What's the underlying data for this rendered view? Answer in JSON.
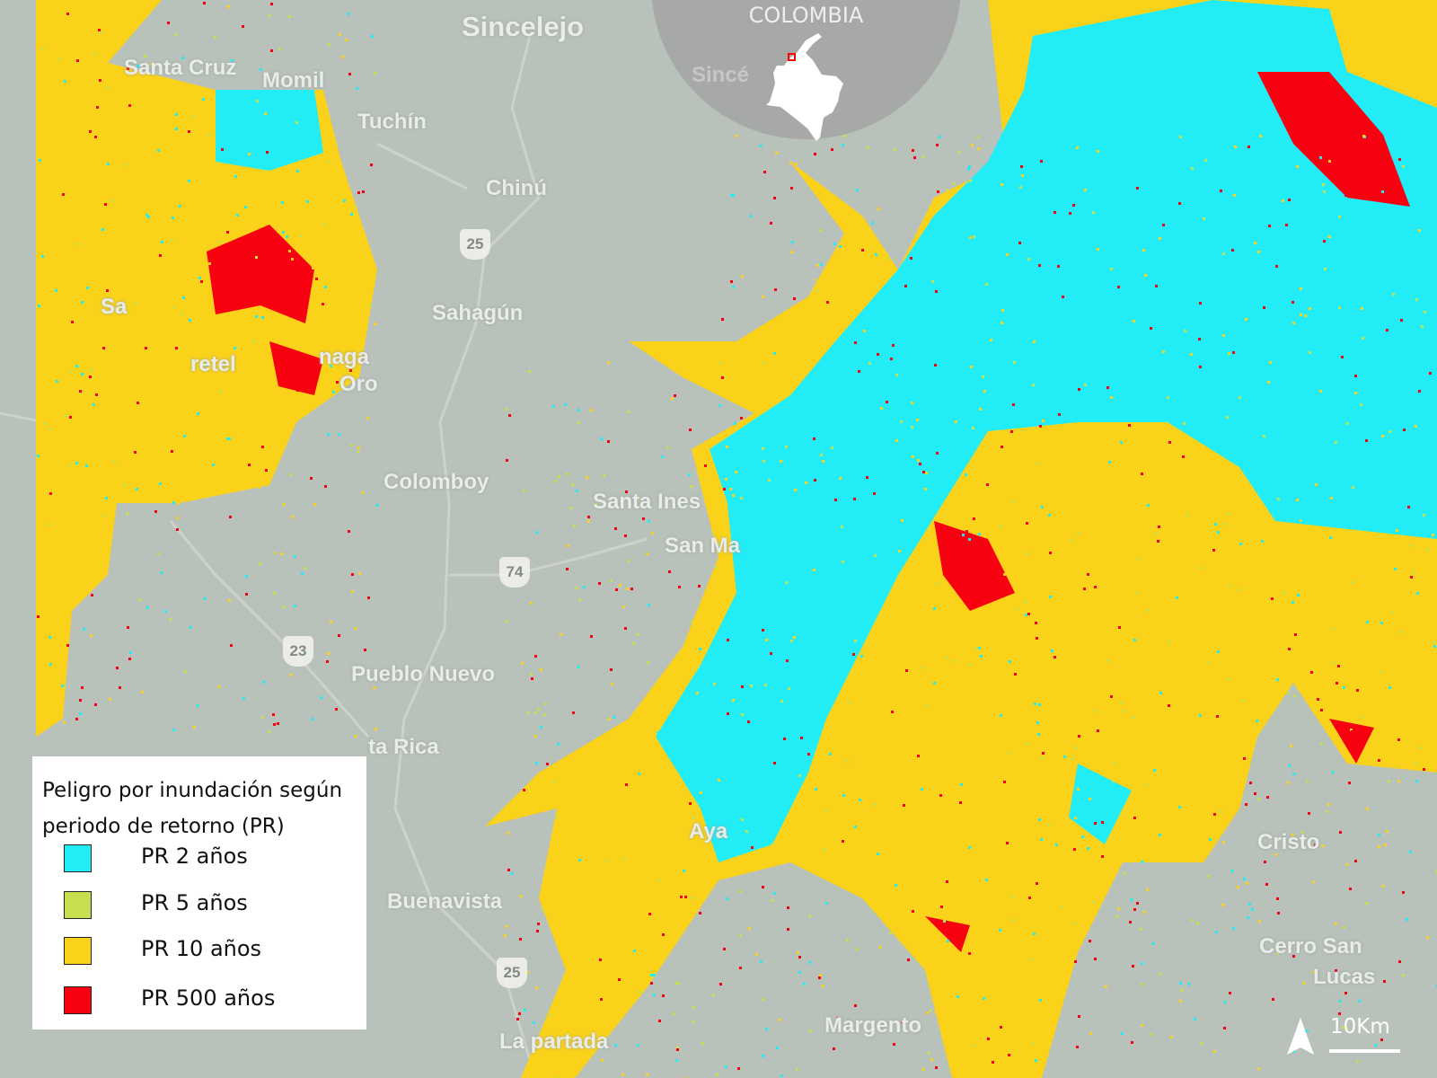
{
  "inset": {
    "title": "COLOMBIA",
    "label_under": "Sincé"
  },
  "legend": {
    "title": "Peligro por inundación según periodo de retorno (PR)",
    "items": [
      {
        "label": "PR 2 años",
        "color": "#22ecf6"
      },
      {
        "label": "PR 5 años",
        "color": "#c5df50"
      },
      {
        "label": "PR 10 años",
        "color": "#fad219"
      },
      {
        "label": "PR 500 años",
        "color": "#f70010"
      }
    ]
  },
  "places": [
    "Sincelejo",
    "Santa Cruz",
    "Momil",
    "Tuchín",
    "Chinú",
    "Sahagún",
    "naga",
    "Oro",
    "Colomboy",
    "Santa Ines",
    "San Ma",
    "Pueblo Nuevo",
    "ta Rica",
    "Buenavista",
    "Aya",
    "Cristo",
    "Cerro San",
    "Lucas",
    "Margento",
    "La  partada",
    "Sa",
    "retel"
  ],
  "roads": [
    "25",
    "74",
    "23",
    "25"
  ],
  "scale": {
    "label": "10Km"
  },
  "icons": {
    "north": "north-arrow-icon"
  }
}
